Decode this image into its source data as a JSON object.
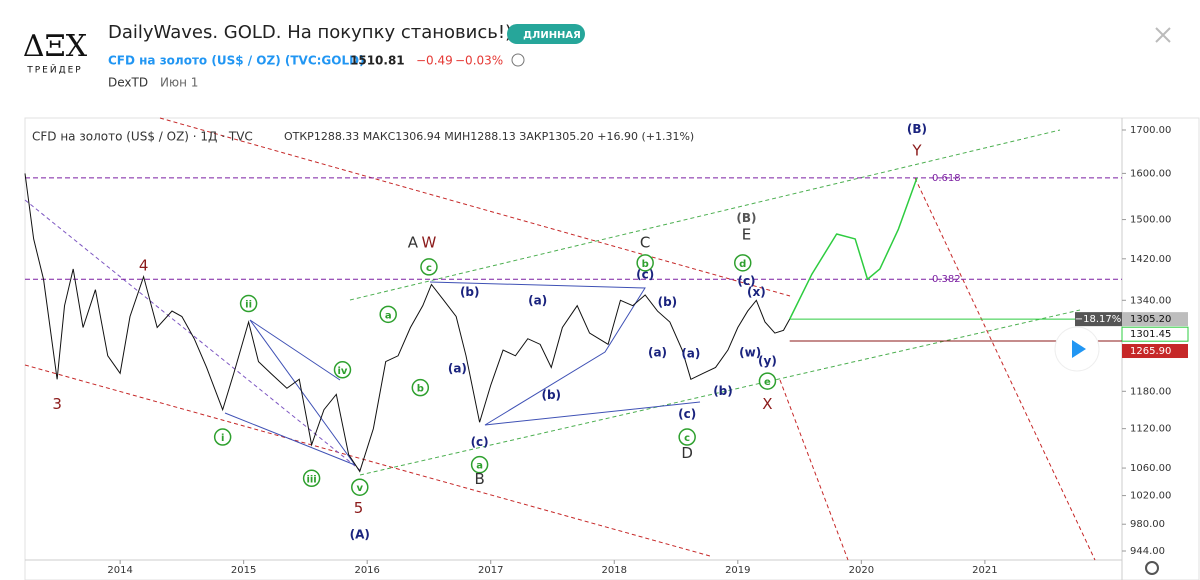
{
  "header": {
    "logo": "ΔΞΧ",
    "logo_sub": "ТРЕЙДЕР",
    "title": "DailyWaves. GOLD. На покупку становись!))",
    "badge": "ДЛИННАЯ",
    "symbol": "CFD на золото (US$ / OZ) (TVC:GOLD)",
    "price": "1510.81",
    "change": "−0.49",
    "change_pct": "−0.03%",
    "author": "DexTD",
    "date": "Июн 1"
  },
  "chart_data": {
    "type": "line",
    "legend_name": "CFD на золото (US$ / OZ) · 1Д · TVC",
    "ohlc": "ОТКР1288.33 МАКС1306.94 МИН1288.13 ЗАКР1305.20 +16.90 (+1.31%)",
    "log_scale": true,
    "color": "#111111",
    "x": [
      2013.23,
      2013.3,
      2013.38,
      2013.49,
      2013.55,
      2013.62,
      2013.7,
      2013.8,
      2013.9,
      2014.0,
      2014.08,
      2014.19,
      2014.3,
      2014.42,
      2014.5,
      2014.6,
      2014.7,
      2014.83,
      2014.92,
      2015.04,
      2015.12,
      2015.22,
      2015.35,
      2015.45,
      2015.55,
      2015.65,
      2015.75,
      2015.85,
      2015.94,
      2016.05,
      2016.15,
      2016.25,
      2016.35,
      2016.45,
      2016.52,
      2016.62,
      2016.72,
      2016.8,
      2016.91,
      2017.0,
      2017.1,
      2017.2,
      2017.3,
      2017.4,
      2017.49,
      2017.58,
      2017.7,
      2017.8,
      2017.95,
      2018.05,
      2018.15,
      2018.25,
      2018.35,
      2018.45,
      2018.55,
      2018.62,
      2018.72,
      2018.82,
      2018.92,
      2019.0,
      2019.08,
      2019.15,
      2019.22,
      2019.3,
      2019.37,
      2019.42
    ],
    "values": [
      1600,
      1460,
      1380,
      1200,
      1330,
      1400,
      1290,
      1360,
      1240,
      1210,
      1310,
      1385,
      1290,
      1320,
      1310,
      1270,
      1220,
      1150,
      1210,
      1300,
      1230,
      1210,
      1185,
      1200,
      1095,
      1150,
      1175,
      1080,
      1055,
      1120,
      1230,
      1240,
      1290,
      1330,
      1370,
      1340,
      1310,
      1240,
      1130,
      1190,
      1250,
      1240,
      1270,
      1260,
      1220,
      1290,
      1330,
      1280,
      1260,
      1340,
      1330,
      1350,
      1320,
      1300,
      1250,
      1200,
      1210,
      1220,
      1250,
      1290,
      1320,
      1340,
      1300,
      1280,
      1285,
      1305.2
    ],
    "forecast": {
      "x": [
        2019.42,
        2019.6,
        2019.8,
        2019.95,
        2020.05,
        2020.15,
        2020.3,
        2020.45
      ],
      "values": [
        1305.2,
        1390,
        1470,
        1460,
        1380,
        1400,
        1480,
        1590
      ],
      "color": "#2ecc40"
    },
    "xlim": [
      2013.23,
      2022.11
    ],
    "xticks": [
      2014,
      2015,
      2016,
      2017,
      2018,
      2019,
      2020,
      2021
    ],
    "ylim": [
      944,
      1700
    ],
    "yticks": [
      {
        "value": 1700,
        "label": "1700.00"
      },
      {
        "value": 1600,
        "label": "1600.00"
      },
      {
        "value": 1500,
        "label": "1500.00"
      },
      {
        "value": 1420,
        "label": "1420.00"
      },
      {
        "value": 1340,
        "label": "1340.00"
      },
      {
        "value": 1180,
        "label": "1180.00"
      },
      {
        "value": 1120,
        "label": "1120.00"
      },
      {
        "value": 1060,
        "label": "1060.00"
      },
      {
        "value": 1020,
        "label": "1020.00"
      },
      {
        "value": 980,
        "label": "980.00"
      },
      {
        "value": 944,
        "label": "944.00"
      }
    ],
    "fib_levels": [
      {
        "value": 1590,
        "label": "0.618"
      },
      {
        "value": 1380,
        "label": "0.382"
      }
    ],
    "price_labels": [
      {
        "value": 1305.2,
        "label": "1305.20",
        "color": "#bdbdbd"
      },
      {
        "value": 1301.45,
        "label": "1301.45",
        "color": "#ffffff"
      },
      {
        "value": 1265.9,
        "label": "1265.90",
        "color": "#c62828"
      }
    ],
    "percent_label": "−18.17%",
    "annotations": [
      {
        "text": "3",
        "x": 2013.49,
        "y": 1160,
        "color": "#8b1a1a",
        "circle": false
      },
      {
        "text": "4",
        "x": 2014.19,
        "y": 1408,
        "color": "#8b1a1a",
        "circle": false
      },
      {
        "text": "5",
        "x": 2015.93,
        "y": 1003,
        "color": "#8b1a1a",
        "circle": false
      },
      {
        "text": "(A)",
        "x": 2015.94,
        "y": 967,
        "color": "#1a237e",
        "circle": false
      },
      {
        "text": "i",
        "x": 2014.83,
        "y": 1107,
        "color": "#2ea02e",
        "circle": true
      },
      {
        "text": "ii",
        "x": 2015.04,
        "y": 1334,
        "color": "#2ea02e",
        "circle": true
      },
      {
        "text": "iii",
        "x": 2015.55,
        "y": 1045,
        "color": "#2ea02e",
        "circle": true
      },
      {
        "text": "iv",
        "x": 2015.8,
        "y": 1216,
        "color": "#2ea02e",
        "circle": true
      },
      {
        "text": "v",
        "x": 2015.94,
        "y": 1032,
        "color": "#2ea02e",
        "circle": true
      },
      {
        "text": "a",
        "x": 2016.17,
        "y": 1314,
        "color": "#2ea02e",
        "circle": true
      },
      {
        "text": "b",
        "x": 2016.43,
        "y": 1186,
        "color": "#2ea02e",
        "circle": true
      },
      {
        "text": "c",
        "x": 2016.5,
        "y": 1404,
        "color": "#2ea02e",
        "circle": true
      },
      {
        "text": "A",
        "x": 2016.37,
        "y": 1454,
        "color": "#333333",
        "circle": false
      },
      {
        "text": "W",
        "x": 2016.5,
        "y": 1454,
        "color": "#8b1a1a",
        "circle": false
      },
      {
        "text": "(b)",
        "x": 2016.83,
        "y": 1357,
        "color": "#1a237e",
        "circle": false
      },
      {
        "text": "(a)",
        "x": 2016.73,
        "y": 1219,
        "color": "#1a237e",
        "circle": false
      },
      {
        "text": "(c)",
        "x": 2016.91,
        "y": 1100,
        "color": "#1a237e",
        "circle": false
      },
      {
        "text": "a",
        "x": 2016.91,
        "y": 1065,
        "color": "#2ea02e",
        "circle": true
      },
      {
        "text": "B",
        "x": 2016.91,
        "y": 1045,
        "color": "#333333",
        "circle": false
      },
      {
        "text": "(a)",
        "x": 2017.38,
        "y": 1341,
        "color": "#1a237e",
        "circle": false
      },
      {
        "text": "(b)",
        "x": 2017.49,
        "y": 1175,
        "color": "#1a237e",
        "circle": false
      },
      {
        "text": "(c)",
        "x": 2018.25,
        "y": 1390,
        "color": "#1a237e",
        "circle": false
      },
      {
        "text": "b",
        "x": 2018.25,
        "y": 1412,
        "color": "#2ea02e",
        "circle": true
      },
      {
        "text": "C",
        "x": 2018.25,
        "y": 1454,
        "color": "#333333",
        "circle": false
      },
      {
        "text": "(b)",
        "x": 2018.43,
        "y": 1338,
        "color": "#1a237e",
        "circle": false
      },
      {
        "text": "(a)",
        "x": 2018.35,
        "y": 1247,
        "color": "#1a237e",
        "circle": false
      },
      {
        "text": "(a)",
        "x": 2018.62,
        "y": 1245,
        "color": "#1a237e",
        "circle": false
      },
      {
        "text": "(b)",
        "x": 2018.88,
        "y": 1181,
        "color": "#1a237e",
        "circle": false
      },
      {
        "text": "(c)",
        "x": 2018.59,
        "y": 1144,
        "color": "#1a237e",
        "circle": false
      },
      {
        "text": "c",
        "x": 2018.59,
        "y": 1107,
        "color": "#2ea02e",
        "circle": true
      },
      {
        "text": "D",
        "x": 2018.59,
        "y": 1083,
        "color": "#333333",
        "circle": false
      },
      {
        "text": "(B)",
        "x": 2019.07,
        "y": 1504,
        "color": "#555555",
        "circle": false
      },
      {
        "text": "E",
        "x": 2019.07,
        "y": 1470,
        "color": "#333333",
        "circle": false
      },
      {
        "text": "d",
        "x": 2019.04,
        "y": 1412,
        "color": "#2ea02e",
        "circle": true
      },
      {
        "text": "(c)",
        "x": 2019.07,
        "y": 1378,
        "color": "#1a237e",
        "circle": false
      },
      {
        "text": "(x)",
        "x": 2019.15,
        "y": 1357,
        "color": "#1a237e",
        "circle": false
      },
      {
        "text": "(w)",
        "x": 2019.1,
        "y": 1247,
        "color": "#1a237e",
        "circle": false
      },
      {
        "text": "(y)",
        "x": 2019.24,
        "y": 1232,
        "color": "#1a237e",
        "circle": false
      },
      {
        "text": "e",
        "x": 2019.24,
        "y": 1197,
        "color": "#2ea02e",
        "circle": true
      },
      {
        "text": "X",
        "x": 2019.24,
        "y": 1160,
        "color": "#8b1a1a",
        "circle": false
      },
      {
        "text": "(B)",
        "x": 2020.45,
        "y": 1704,
        "color": "#1a237e",
        "circle": false
      },
      {
        "text": "Y",
        "x": 2020.45,
        "y": 1653,
        "color": "#8b1a1a",
        "circle": false
      }
    ]
  }
}
